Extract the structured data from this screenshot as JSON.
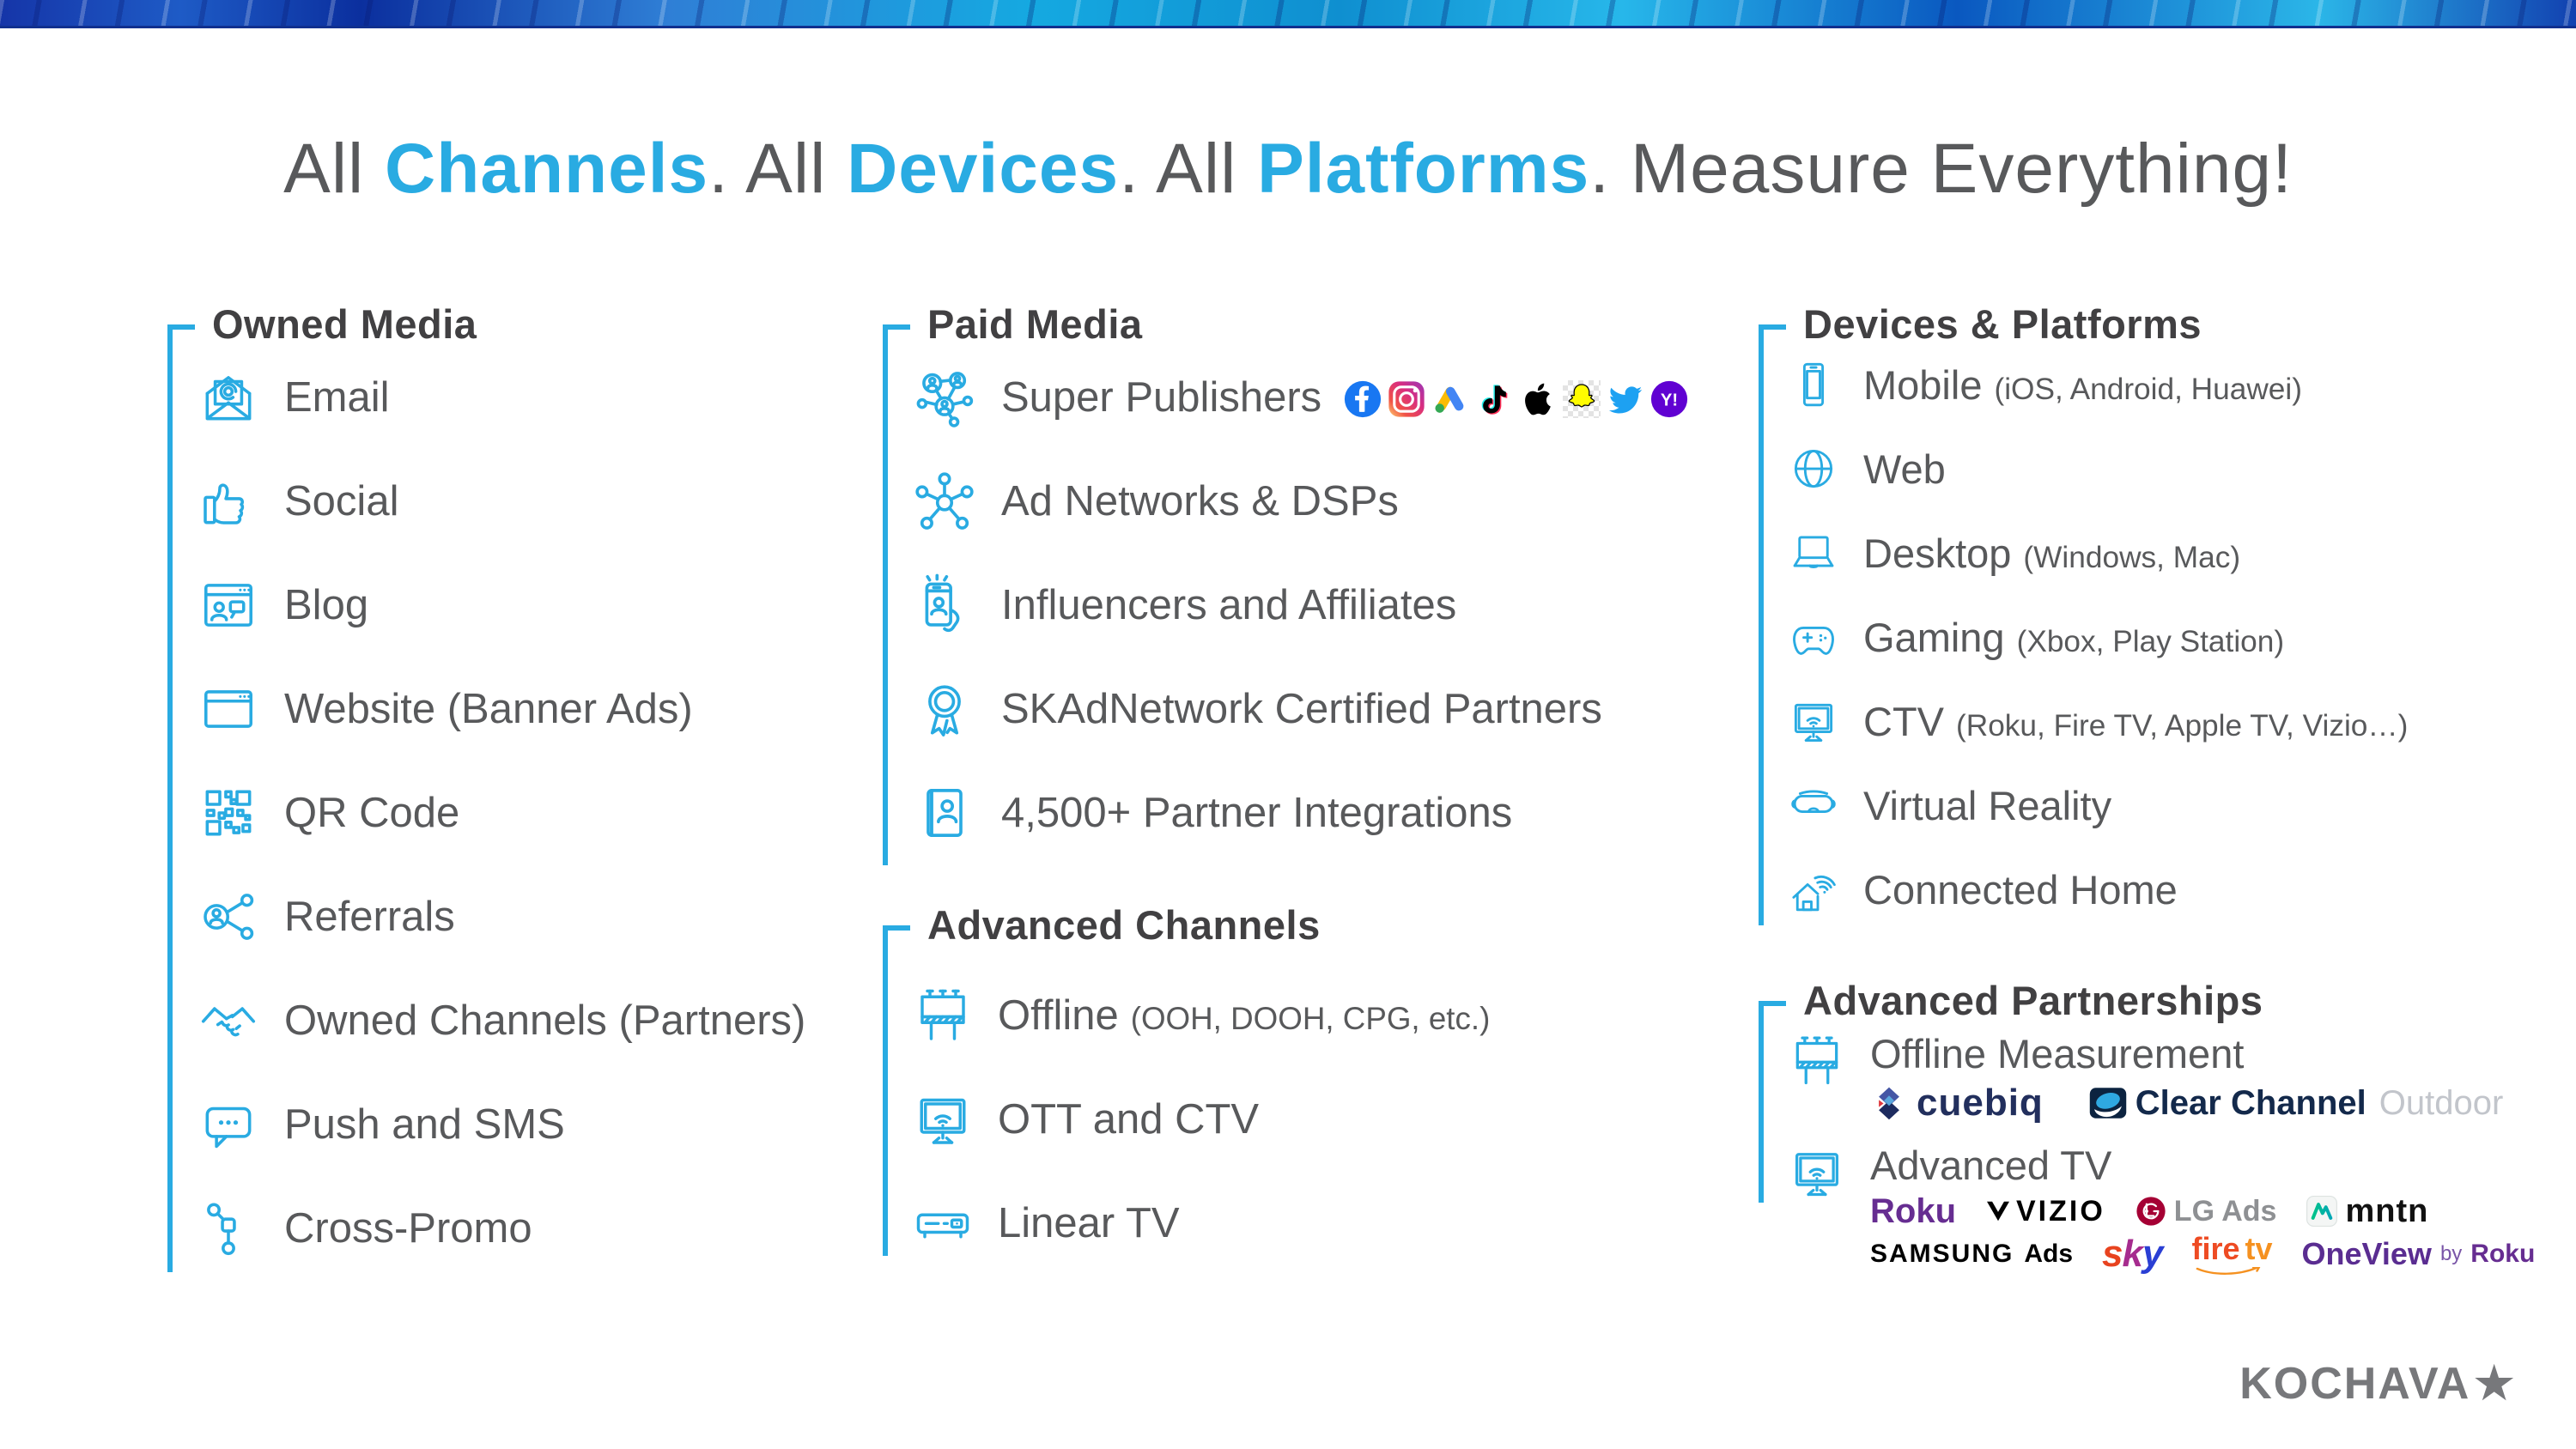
{
  "slide": {
    "accent_color": "#29abe2",
    "heading_color": "#414042",
    "text_color": "#58595b"
  },
  "title": {
    "segments": [
      {
        "text": "All ",
        "em": false
      },
      {
        "text": "Channels",
        "em": true
      },
      {
        "text": ". All ",
        "em": false
      },
      {
        "text": "Devices",
        "em": true
      },
      {
        "text": ". All ",
        "em": false
      },
      {
        "text": "Platforms",
        "em": true
      },
      {
        "text": ". Measure Everything!",
        "em": false
      }
    ]
  },
  "sections": [
    {
      "title": "Owned Media",
      "items": [
        {
          "label": "Email",
          "icon": "email-icon"
        },
        {
          "label": "Social",
          "icon": "thumbs-up-icon"
        },
        {
          "label": "Blog",
          "icon": "blog-icon"
        },
        {
          "label": "Website (Banner Ads)",
          "icon": "website-icon"
        },
        {
          "label": "QR Code",
          "icon": "qr-code-icon"
        },
        {
          "label": "Referrals",
          "icon": "referrals-icon"
        },
        {
          "label": "Owned Channels (Partners)",
          "icon": "handshake-icon"
        },
        {
          "label": "Push and SMS",
          "icon": "push-sms-icon"
        },
        {
          "label": "Cross-Promo",
          "icon": "cross-promo-icon"
        }
      ]
    },
    {
      "title": "Paid Media",
      "items": [
        {
          "label": "Super Publishers",
          "icon": "super-publishers-icon",
          "brand_icons": [
            "facebook-icon",
            "instagram-icon",
            "google-ads-icon",
            "tiktok-icon",
            "apple-icon",
            "snapchat-icon",
            "twitter-icon",
            "yahoo-icon"
          ]
        },
        {
          "label": "Ad Networks & DSPs",
          "icon": "ad-network-icon"
        },
        {
          "label": "Influencers and Affiliates",
          "icon": "influencer-icon"
        },
        {
          "label": "SKAdNetwork Certified Partners",
          "icon": "award-icon"
        },
        {
          "label": "4,500+ Partner Integrations",
          "icon": "contacts-icon"
        }
      ]
    },
    {
      "title": "Advanced Channels",
      "items": [
        {
          "label": "Offline",
          "note": "(OOH, DOOH, CPG, etc.)",
          "icon": "billboard-icon"
        },
        {
          "label": "OTT and CTV",
          "icon": "tv-wifi-icon"
        },
        {
          "label": "Linear TV",
          "icon": "set-top-box-icon"
        }
      ]
    },
    {
      "title": "Devices & Platforms",
      "items": [
        {
          "label": "Mobile",
          "note": "(iOS, Android, Huawei)",
          "icon": "smartphone-icon"
        },
        {
          "label": "Web",
          "icon": "globe-icon"
        },
        {
          "label": "Desktop",
          "note": "(Windows, Mac)",
          "icon": "laptop-icon"
        },
        {
          "label": "Gaming",
          "note": "(Xbox, Play Station)",
          "icon": "gamepad-icon"
        },
        {
          "label": "CTV",
          "note": "(Roku, Fire TV, Apple TV, Vizio…)",
          "icon": "tv-wifi-icon"
        },
        {
          "label": "Virtual Reality",
          "icon": "vr-headset-icon"
        },
        {
          "label": "Connected Home",
          "icon": "smart-home-icon"
        }
      ]
    },
    {
      "title": "Advanced Partnerships",
      "items": [
        {
          "label": "Offline Measurement",
          "icon": "billboard-icon",
          "logo_rows": [
            [
              {
                "name": "cuebiq-logo",
                "parts": [
                  "cuebiq"
                ]
              },
              {
                "name": "clear-channel-outdoor-logo",
                "parts": [
                  "Clear Channel",
                  "Outdoor"
                ]
              }
            ]
          ]
        },
        {
          "label": "Advanced TV",
          "icon": "tv-wifi-icon",
          "logo_rows": [
            [
              {
                "name": "roku-logo",
                "parts": [
                  "Roku"
                ]
              },
              {
                "name": "vizio-logo",
                "parts": [
                  "VIZIO"
                ]
              },
              {
                "name": "lg-ads-logo",
                "parts": [
                  "LG Ads"
                ]
              },
              {
                "name": "mntn-logo",
                "parts": [
                  "mntn"
                ]
              }
            ],
            [
              {
                "name": "samsung-ads-logo",
                "parts": [
                  "SAMSUNG",
                  "Ads"
                ]
              },
              {
                "name": "sky-logo",
                "parts": [
                  "s",
                  "k",
                  "y"
                ]
              },
              {
                "name": "fire-tv-logo",
                "parts": [
                  "fire",
                  "tv"
                ]
              },
              {
                "name": "oneview-logo",
                "parts": [
                  "OneView",
                  "by",
                  "Roku"
                ]
              }
            ]
          ]
        }
      ]
    }
  ],
  "footer": {
    "brand": "KOCHAVA",
    "star": "★"
  }
}
